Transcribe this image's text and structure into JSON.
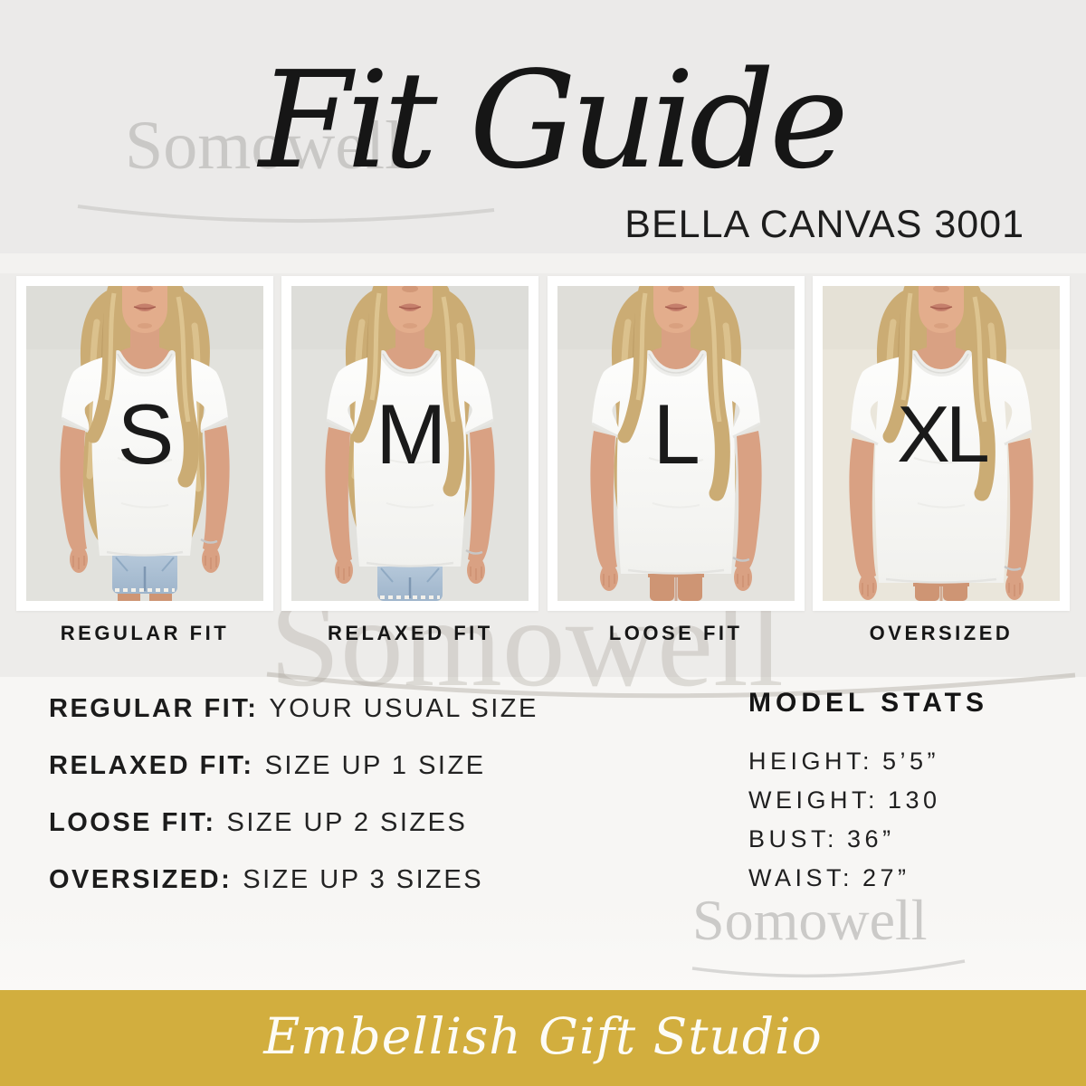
{
  "header": {
    "watermark": "Somowell",
    "title": "Fit Guide",
    "subtitle": "BELLA CANVAS 3001"
  },
  "panels": [
    {
      "size": "S",
      "fit": "REGULAR FIT"
    },
    {
      "size": "M",
      "fit": "RELAXED FIT"
    },
    {
      "size": "L",
      "fit": "LOOSE FIT"
    },
    {
      "size": "XL",
      "fit": "OVERSIZED"
    }
  ],
  "fit_rules": [
    {
      "label": "REGULAR FIT:",
      "value": "YOUR USUAL SIZE"
    },
    {
      "label": "RELAXED FIT:",
      "value": "SIZE UP 1 SIZE"
    },
    {
      "label": "LOOSE FIT:",
      "value": "SIZE UP 2 SIZES"
    },
    {
      "label": "OVERSIZED:",
      "value": "SIZE UP 3 SIZES"
    }
  ],
  "model_stats": {
    "title": "MODEL STATS",
    "stats": [
      {
        "label": "HEIGHT:",
        "value": "5’5”"
      },
      {
        "label": "WEIGHT:",
        "value": "130"
      },
      {
        "label": "BUST:",
        "value": "36”"
      },
      {
        "label": "WAIST:",
        "value": "27”"
      }
    ]
  },
  "watermarks": {
    "center": "Somowell",
    "bottom": "Somowell"
  },
  "footer": {
    "brand": "Embellish Gift Studio"
  },
  "colors": {
    "gold": "#D2AE3E",
    "ink": "#1A1A1A",
    "watermark_gray": "#C9C8C6",
    "photo_background": "#E2E2DD",
    "shirt_white": "#FBFBFA"
  }
}
